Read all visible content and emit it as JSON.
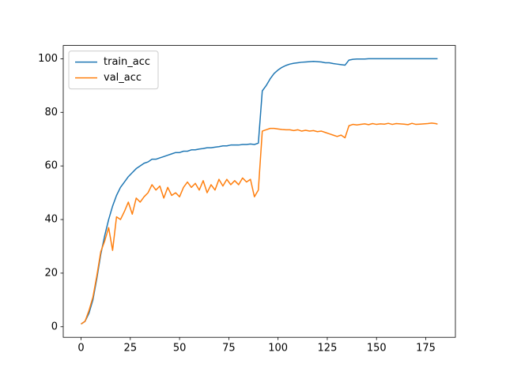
{
  "chart_data": {
    "type": "line",
    "x": [
      0,
      2,
      4,
      6,
      8,
      10,
      12,
      14,
      16,
      18,
      20,
      22,
      24,
      26,
      28,
      30,
      32,
      34,
      36,
      38,
      40,
      42,
      44,
      46,
      48,
      50,
      52,
      54,
      56,
      58,
      60,
      62,
      64,
      66,
      68,
      70,
      72,
      74,
      76,
      78,
      80,
      82,
      84,
      86,
      88,
      90,
      92,
      94,
      96,
      98,
      100,
      102,
      104,
      106,
      108,
      110,
      112,
      114,
      116,
      118,
      120,
      122,
      124,
      126,
      128,
      130,
      132,
      134,
      136,
      138,
      140,
      142,
      144,
      146,
      148,
      150,
      152,
      154,
      156,
      158,
      160,
      162,
      164,
      166,
      168,
      170,
      172,
      174,
      176,
      178,
      180,
      181
    ],
    "series": [
      {
        "name": "train_acc",
        "color": "#1f77b4",
        "values": [
          1,
          2,
          5,
          10,
          18,
          27,
          34,
          40,
          45,
          49,
          52,
          54,
          56,
          57.5,
          59,
          60,
          61,
          61.5,
          62.5,
          62.5,
          63,
          63.5,
          64,
          64.5,
          65,
          65,
          65.5,
          65.5,
          66,
          66,
          66.3,
          66.5,
          66.8,
          66.8,
          67,
          67.2,
          67.5,
          67.5,
          67.8,
          67.8,
          67.8,
          68,
          68,
          68.2,
          68,
          68.5,
          88,
          90,
          92.5,
          94.5,
          95.8,
          96.8,
          97.5,
          98,
          98.3,
          98.5,
          98.7,
          98.8,
          98.9,
          99,
          98.9,
          98.8,
          98.5,
          98.5,
          98.2,
          98,
          97.8,
          97.6,
          99.5,
          99.8,
          99.9,
          99.9,
          99.9,
          100,
          100,
          100,
          100,
          100,
          100,
          100,
          100,
          100,
          100,
          100,
          100,
          100,
          100,
          100,
          100,
          100,
          100,
          100
        ]
      },
      {
        "name": "val_acc",
        "color": "#ff7f0e",
        "values": [
          1,
          2,
          6,
          11,
          19,
          28,
          32,
          37,
          28.5,
          41,
          40,
          43,
          46.5,
          42,
          48,
          46.5,
          48.5,
          50,
          53,
          51,
          52.5,
          48,
          52,
          49,
          50,
          48.5,
          52,
          54,
          52,
          53.5,
          51,
          54.5,
          50,
          53,
          51,
          55,
          52.5,
          55,
          53,
          54.5,
          53,
          55.5,
          54,
          55,
          48.5,
          51,
          73,
          73.5,
          74,
          74,
          73.8,
          73.6,
          73.5,
          73.5,
          73.2,
          73.5,
          73,
          73.3,
          73,
          73.2,
          72.8,
          73,
          72.5,
          72,
          71.5,
          71,
          71.5,
          70.5,
          75,
          75.5,
          75.3,
          75.5,
          75.7,
          75.4,
          75.8,
          75.5,
          75.7,
          75.6,
          75.9,
          75.5,
          75.8,
          75.7,
          75.6,
          75.4,
          75.9,
          75.5,
          75.6,
          75.7,
          75.8,
          76,
          75.8,
          75.6
        ]
      }
    ],
    "xlim": [
      -9.05,
      190.05
    ],
    "xticks": [
      0,
      25,
      50,
      75,
      100,
      125,
      150,
      175
    ],
    "ylim": [
      -3.95,
      104.95
    ],
    "yticks": [
      0,
      20,
      40,
      60,
      80,
      100
    ],
    "grid": false,
    "legend": "upper-left"
  }
}
